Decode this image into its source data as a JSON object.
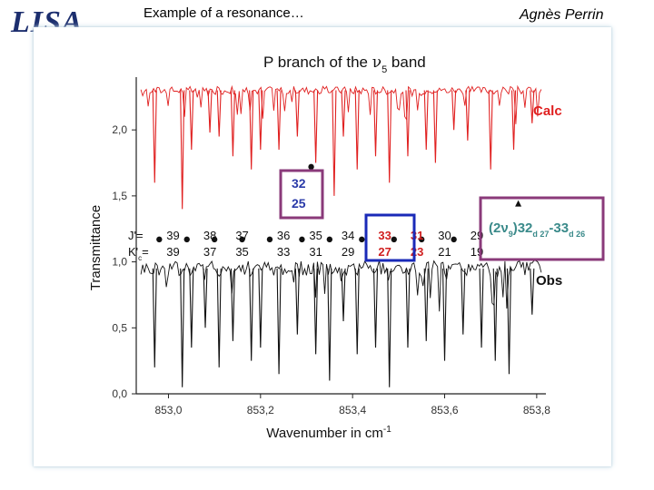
{
  "slide": {
    "logo_text": "LISA",
    "title": "Example of a resonance…",
    "author": "Agnès Perrin"
  },
  "chart_data": {
    "type": "line",
    "title_prefix": "P branch of the ",
    "title_symbol": "ν",
    "title_sub": "5",
    "title_suffix": " band",
    "xlabel_main": "Wavenumber in cm",
    "xlabel_sup": "-1",
    "ylabel": "Transmittance",
    "xlim": [
      852.93,
      853.82
    ],
    "ylim": [
      0.0,
      2.4
    ],
    "x_ticks": [
      "853,0",
      "853,2",
      "853,4",
      "853,6",
      "853,8"
    ],
    "x_tick_values": [
      853.0,
      853.2,
      853.4,
      853.6,
      853.8
    ],
    "y_ticks": [
      "0,0",
      "0,5",
      "1,0",
      "1,5",
      "2,0"
    ],
    "y_tick_values": [
      0.0,
      0.5,
      1.0,
      1.5,
      2.0
    ],
    "series": [
      {
        "name": "Calc",
        "color": "#e02020",
        "baseline": 2.3,
        "lines": [
          [
            852.97,
            1.6
          ],
          [
            853.03,
            1.4
          ],
          [
            853.05,
            1.85
          ],
          [
            853.09,
            1.98
          ],
          [
            853.11,
            1.95
          ],
          [
            853.14,
            1.8
          ],
          [
            853.18,
            1.7
          ],
          [
            853.2,
            1.85
          ],
          [
            853.24,
            1.85
          ],
          [
            853.28,
            1.95
          ],
          [
            853.32,
            1.75
          ],
          [
            853.36,
            1.5
          ],
          [
            853.38,
            1.95
          ],
          [
            853.41,
            1.7
          ],
          [
            853.45,
            1.8
          ],
          [
            853.48,
            1.6
          ],
          [
            853.52,
            1.8
          ],
          [
            853.56,
            1.85
          ],
          [
            853.58,
            1.75
          ],
          [
            853.62,
            2.0
          ],
          [
            853.65,
            1.92
          ],
          [
            853.7,
            1.7
          ],
          [
            853.75,
            1.85
          ],
          [
            853.79,
            2.05
          ]
        ]
      },
      {
        "name": "Obs",
        "color": "#111111",
        "baseline": 0.95,
        "lines": [
          [
            852.97,
            0.2
          ],
          [
            853.03,
            0.05
          ],
          [
            853.05,
            0.35
          ],
          [
            853.08,
            0.5
          ],
          [
            853.11,
            0.2
          ],
          [
            853.14,
            0.4
          ],
          [
            853.18,
            0.25
          ],
          [
            853.2,
            0.35
          ],
          [
            853.24,
            0.15
          ],
          [
            853.28,
            0.45
          ],
          [
            853.32,
            0.3
          ],
          [
            853.35,
            0.1
          ],
          [
            853.38,
            0.55
          ],
          [
            853.41,
            0.3
          ],
          [
            853.45,
            0.35
          ],
          [
            853.48,
            0.05
          ],
          [
            853.52,
            0.35
          ],
          [
            853.56,
            0.4
          ],
          [
            853.6,
            0.25
          ],
          [
            853.64,
            0.45
          ],
          [
            853.68,
            0.35
          ],
          [
            853.71,
            0.25
          ],
          [
            853.74,
            0.15
          ],
          [
            853.79,
            0.6
          ]
        ]
      }
    ],
    "markers": [
      {
        "x": 852.98,
        "y": 1.17
      },
      {
        "x": 853.04,
        "y": 1.17
      },
      {
        "x": 853.1,
        "y": 1.17
      },
      {
        "x": 853.16,
        "y": 1.17
      },
      {
        "x": 853.22,
        "y": 1.17
      },
      {
        "x": 853.29,
        "y": 1.17
      },
      {
        "x": 853.35,
        "y": 1.17
      },
      {
        "x": 853.42,
        "y": 1.17
      },
      {
        "x": 853.49,
        "y": 1.17
      },
      {
        "x": 853.55,
        "y": 1.17
      },
      {
        "x": 853.62,
        "y": 1.17
      },
      {
        "x": 853.31,
        "y": 1.72
      }
    ],
    "triangle_marker": {
      "x": 853.76,
      "y": 1.44
    },
    "labels": {
      "calc": "Calc",
      "obs": "Obs",
      "j_prefix": "J'=",
      "k_prefix": "K'",
      "k_sub": "c",
      "k_suffix": "=",
      "boxed_upper": "32",
      "boxed_lower": "25",
      "resonance": {
        "open": "(2ν",
        "sub9": "9",
        "mid": ")32",
        "d27": "d 27",
        "dash": "-33",
        "d26": "d 26"
      }
    },
    "quantum_labels": [
      {
        "x": 853.01,
        "j": "39",
        "k": "39",
        "color": "#111111"
      },
      {
        "x": 853.09,
        "j": "38",
        "k": "37",
        "color": "#111111"
      },
      {
        "x": 853.16,
        "j": "37",
        "k": "35",
        "color": "#111111"
      },
      {
        "x": 853.25,
        "j": "36",
        "k": "33",
        "color": "#111111"
      },
      {
        "x": 853.32,
        "j": "35",
        "k": "31",
        "color": "#111111"
      },
      {
        "x": 853.39,
        "j": "34",
        "k": "29",
        "color": "#111111"
      },
      {
        "x": 853.47,
        "j": "33",
        "k": "27",
        "color": "#d02020"
      },
      {
        "x": 853.54,
        "j": "31",
        "k": "23",
        "color": "#d02020"
      },
      {
        "x": 853.6,
        "j": "30",
        "k": "21",
        "color": "#111111"
      },
      {
        "x": 853.67,
        "j": "29",
        "k": "19",
        "color": "#111111"
      }
    ],
    "colors": {
      "calc": "#e02020",
      "obs": "#111111",
      "blue_label": "#2a3aa8",
      "purple_box": "#8a3a7a",
      "blue_box": "#1a2ab8",
      "teal": "#3a8a8a"
    }
  }
}
